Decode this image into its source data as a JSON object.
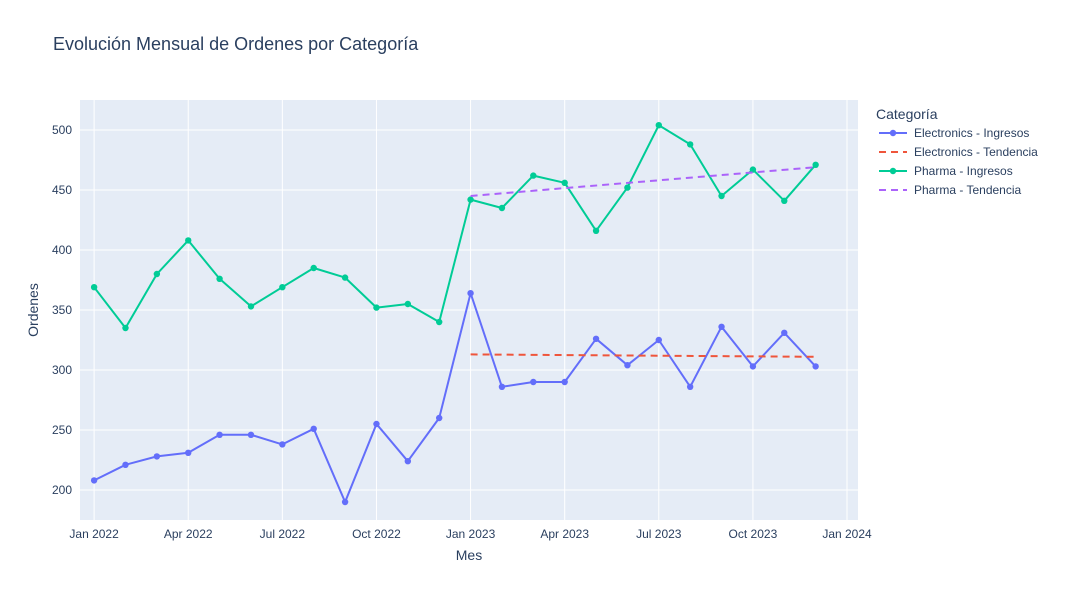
{
  "chart_data": {
    "type": "line",
    "title": "Evolución Mensual de Ordenes por Categoría",
    "xlabel": "Mes",
    "ylabel": "Ordenes",
    "x_tick_labels": [
      "Jan 2022",
      "Apr 2022",
      "Jul 2022",
      "Oct 2022",
      "Jan 2023",
      "Apr 2023",
      "Jul 2023",
      "Oct 2023",
      "Jan 2024"
    ],
    "x_ticks": [
      "2022-01",
      "2022-04",
      "2022-07",
      "2022-10",
      "2023-01",
      "2023-04",
      "2023-07",
      "2023-10",
      "2024-01"
    ],
    "y_ticks": [
      200,
      250,
      300,
      350,
      400,
      450,
      500
    ],
    "xlim": [
      "2021-12",
      "2024-01"
    ],
    "ylim": [
      175,
      525
    ],
    "grid": true,
    "legend_title": "Categoría",
    "legend_position": "right",
    "series": [
      {
        "name": "Electronics - Ingresos",
        "color": "#636efa",
        "style": "lines+markers",
        "x": [
          "2022-01",
          "2022-02",
          "2022-03",
          "2022-04",
          "2022-05",
          "2022-06",
          "2022-07",
          "2022-08",
          "2022-09",
          "2022-10",
          "2022-11",
          "2022-12",
          "2023-01",
          "2023-02",
          "2023-03",
          "2023-04",
          "2023-05",
          "2023-06",
          "2023-07",
          "2023-08",
          "2023-09",
          "2023-10",
          "2023-11",
          "2023-12"
        ],
        "values": [
          208,
          221,
          228,
          231,
          246,
          246,
          238,
          251,
          190,
          255,
          224,
          260,
          364,
          286,
          290,
          290,
          326,
          304,
          325,
          286,
          336,
          303,
          331,
          303
        ]
      },
      {
        "name": "Electronics - Tendencia",
        "color": "#ef553b",
        "style": "dash",
        "x": [
          "2023-01",
          "2023-12"
        ],
        "values": [
          313,
          311
        ]
      },
      {
        "name": "Pharma - Ingresos",
        "color": "#00cc96",
        "style": "lines+markers",
        "x": [
          "2022-01",
          "2022-02",
          "2022-03",
          "2022-04",
          "2022-05",
          "2022-06",
          "2022-07",
          "2022-08",
          "2022-09",
          "2022-10",
          "2022-11",
          "2022-12",
          "2023-01",
          "2023-02",
          "2023-03",
          "2023-04",
          "2023-05",
          "2023-06",
          "2023-07",
          "2023-08",
          "2023-09",
          "2023-10",
          "2023-11",
          "2023-12"
        ],
        "values": [
          369,
          335,
          380,
          408,
          376,
          353,
          369,
          385,
          377,
          352,
          355,
          340,
          442,
          435,
          462,
          456,
          416,
          452,
          504,
          488,
          445,
          467,
          441,
          471
        ]
      },
      {
        "name": "Pharma - Tendencia",
        "color": "#ab63fa",
        "style": "dash",
        "x": [
          "2023-01",
          "2023-12"
        ],
        "values": [
          445,
          469
        ]
      }
    ]
  }
}
